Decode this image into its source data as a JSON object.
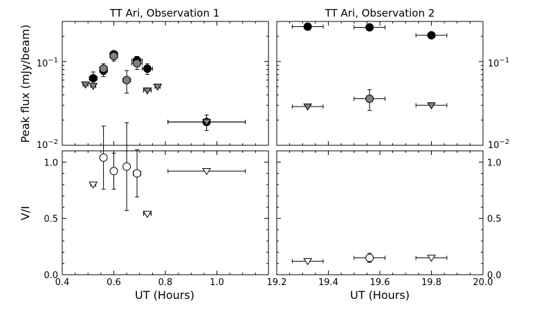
{
  "figure": {
    "ylabel_top": "Peak flux (mJy/beam)",
    "ylabel_bottom": "V/I",
    "xlabel": "UT (Hours)"
  },
  "chart_data": [
    {
      "id": "obs1_flux",
      "type": "scatter",
      "title": "TT Ari, Observation 1",
      "yscale": "log",
      "xlim": [
        0.4,
        1.2
      ],
      "ylim": [
        0.01,
        0.3
      ],
      "ytick_labels": [
        "10^-2",
        "10^-1"
      ],
      "series": [
        {
          "marker": "circle",
          "color": "#000000",
          "points": [
            {
              "x": 0.52,
              "y": 0.063,
              "xerr": 0.015,
              "yerr": 0.012
            },
            {
              "x": 0.56,
              "y": 0.078,
              "xerr": 0.015,
              "yerr": 0.012
            },
            {
              "x": 0.6,
              "y": 0.122,
              "xerr": 0.015,
              "yerr": 0.012
            },
            {
              "x": 0.69,
              "y": 0.103,
              "xerr": 0.02,
              "yerr": 0.012
            },
            {
              "x": 0.73,
              "y": 0.082,
              "xerr": 0.02,
              "yerr": 0.012
            },
            {
              "x": 0.96,
              "y": 0.019,
              "xerr": 0.15,
              "yerr": 0.004
            }
          ]
        },
        {
          "marker": "circle",
          "color": "#808080",
          "points": [
            {
              "x": 0.56,
              "y": 0.082,
              "xerr": 0.015,
              "yerr": 0.012
            },
            {
              "x": 0.6,
              "y": 0.116,
              "xerr": 0.015,
              "yerr": 0.015
            },
            {
              "x": 0.65,
              "y": 0.06,
              "xerr": 0.015,
              "yerr": 0.018
            },
            {
              "x": 0.69,
              "y": 0.095,
              "xerr": 0.02,
              "yerr": 0.015
            }
          ]
        },
        {
          "marker": "triangle-down",
          "color": "#808080",
          "points": [
            {
              "x": 0.49,
              "y": 0.053,
              "xerr": 0.01
            },
            {
              "x": 0.52,
              "y": 0.051,
              "xerr": 0.01
            },
            {
              "x": 0.73,
              "y": 0.045,
              "xerr": 0.015
            },
            {
              "x": 0.77,
              "y": 0.05,
              "xerr": 0.01
            },
            {
              "x": 0.96,
              "y": 0.019,
              "xerr": 0.15
            }
          ]
        }
      ]
    },
    {
      "id": "obs2_flux",
      "type": "scatter",
      "title": "TT Ari, Observation 2",
      "yscale": "log",
      "xlim": [
        19.2,
        20.0
      ],
      "ylim": [
        0.01,
        0.3
      ],
      "ytick_labels": [
        "10^-2",
        "10^-1"
      ],
      "series": [
        {
          "marker": "circle",
          "color": "#000000",
          "points": [
            {
              "x": 19.32,
              "y": 0.26,
              "xerr": 0.06
            },
            {
              "x": 19.56,
              "y": 0.255,
              "xerr": 0.06
            },
            {
              "x": 19.8,
              "y": 0.205,
              "xerr": 0.06
            }
          ]
        },
        {
          "marker": "circle",
          "color": "#808080",
          "points": [
            {
              "x": 19.56,
              "y": 0.036,
              "xerr": 0.06,
              "yerr": 0.01
            }
          ]
        },
        {
          "marker": "triangle-down",
          "color": "#808080",
          "points": [
            {
              "x": 19.32,
              "y": 0.029,
              "xerr": 0.06
            },
            {
              "x": 19.8,
              "y": 0.03,
              "xerr": 0.06
            }
          ]
        }
      ]
    },
    {
      "id": "obs1_vi",
      "type": "scatter",
      "xlim": [
        0.4,
        1.2
      ],
      "ylim": [
        0.0,
        1.1
      ],
      "xticks": [
        0.4,
        0.6,
        0.8,
        1.0
      ],
      "xtick_labels": [
        "0.4",
        "0.6",
        "0.8",
        "1.0"
      ],
      "yticks": [
        0.0,
        0.5,
        1.0
      ],
      "ytick_labels": [
        "0.0",
        "0.5",
        "1.0"
      ],
      "series": [
        {
          "marker": "circle-open",
          "color": "#ffffff",
          "points": [
            {
              "x": 0.56,
              "y": 1.04,
              "xerr": 0.012,
              "yerr": 0.28
            },
            {
              "x": 0.6,
              "y": 0.92,
              "xerr": 0.012,
              "yerr": 0.16
            },
            {
              "x": 0.65,
              "y": 0.96,
              "xerr": 0.012,
              "yerr": 0.39
            },
            {
              "x": 0.69,
              "y": 0.9,
              "xerr": 0.015,
              "yerr": 0.21
            }
          ]
        },
        {
          "marker": "triangle-down-open",
          "color": "#ffffff",
          "points": [
            {
              "x": 0.52,
              "y": 0.8,
              "xerr": 0.01
            },
            {
              "x": 0.73,
              "y": 0.54,
              "xerr": 0.015
            },
            {
              "x": 0.96,
              "y": 0.92,
              "xerr": 0.15
            }
          ]
        }
      ]
    },
    {
      "id": "obs2_vi",
      "type": "scatter",
      "xlim": [
        19.2,
        20.0
      ],
      "ylim": [
        0.0,
        1.1
      ],
      "xticks": [
        19.2,
        19.4,
        19.6,
        19.8,
        20.0
      ],
      "xtick_labels": [
        "19.2",
        "19.4",
        "19.6",
        "19.8",
        "20.0"
      ],
      "yticks": [
        0.0,
        0.5,
        1.0
      ],
      "ytick_labels": [
        "0.0",
        "0.5",
        "1.0"
      ],
      "series": [
        {
          "marker": "circle-open",
          "color": "#ffffff",
          "points": [
            {
              "x": 19.56,
              "y": 0.15,
              "xerr": 0.06,
              "yerr": 0.04
            }
          ]
        },
        {
          "marker": "triangle-down-open",
          "color": "#ffffff",
          "points": [
            {
              "x": 19.32,
              "y": 0.12,
              "xerr": 0.06
            },
            {
              "x": 19.8,
              "y": 0.15,
              "xerr": 0.06
            }
          ]
        }
      ]
    }
  ]
}
